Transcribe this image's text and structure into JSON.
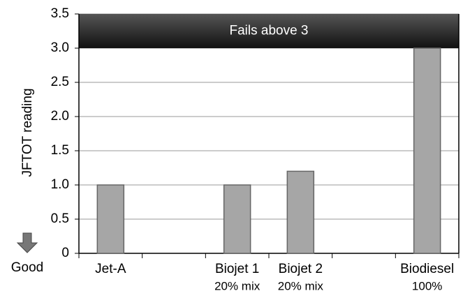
{
  "chart_data": {
    "type": "bar",
    "y_label": "JFTOT reading",
    "annotation": "Good",
    "fail_band": {
      "text": "Fails above 3",
      "ylim": [
        3,
        3.5
      ]
    },
    "categories": [
      [
        "Jet-A"
      ],
      null,
      [
        "Biojet 1",
        "20% mix"
      ],
      [
        "Biojet 2",
        "20% mix"
      ],
      null,
      [
        "Biodiesel",
        "100%"
      ]
    ],
    "values": [
      1,
      null,
      1,
      1.2,
      null,
      3
    ],
    "color": "#a6a6a6",
    "ylim": [
      0,
      3.5
    ],
    "yticks": [
      0,
      0.5,
      {
        "value": 1,
        "label": "1.0"
      },
      1.5,
      {
        "value": 2,
        "label": "2.0"
      },
      2.5,
      {
        "value": 3,
        "label": "3.0"
      },
      3.5
    ],
    "grid": true
  }
}
